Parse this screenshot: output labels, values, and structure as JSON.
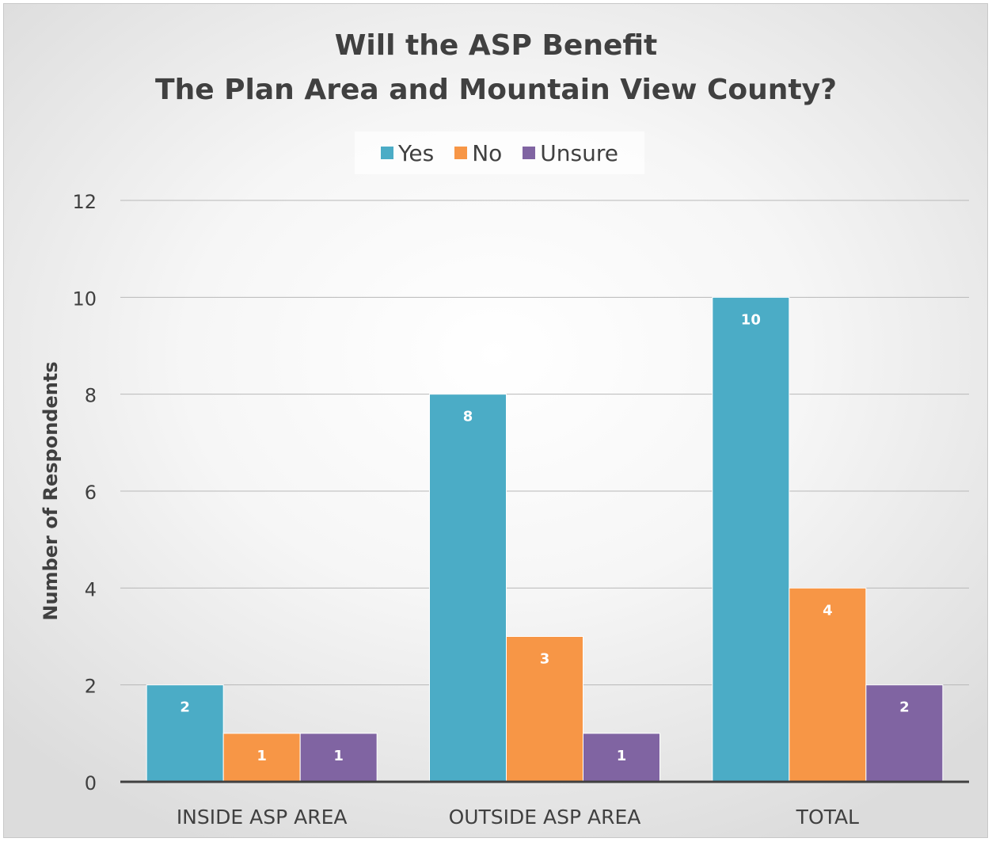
{
  "chart_data": {
    "type": "bar",
    "title_lines": [
      "Will the ASP Benefit",
      "The Plan Area and Mountain View County?"
    ],
    "ylabel": "Number of Respondents",
    "xlabel": "",
    "categories": [
      "INSIDE ASP AREA",
      "OUTSIDE ASP AREA",
      "TOTAL"
    ],
    "series": [
      {
        "name": "Yes",
        "color": "#4bacc6",
        "values": [
          2,
          8,
          10
        ]
      },
      {
        "name": "No",
        "color": "#f79646",
        "values": [
          1,
          3,
          4
        ]
      },
      {
        "name": "Unsure",
        "color": "#8064a2",
        "values": [
          1,
          1,
          2
        ]
      }
    ],
    "ylim": [
      0,
      12
    ],
    "yticks": [
      0,
      2,
      4,
      6,
      8,
      10,
      12
    ],
    "grid": true,
    "legend_position": "top",
    "data_labels": true
  }
}
